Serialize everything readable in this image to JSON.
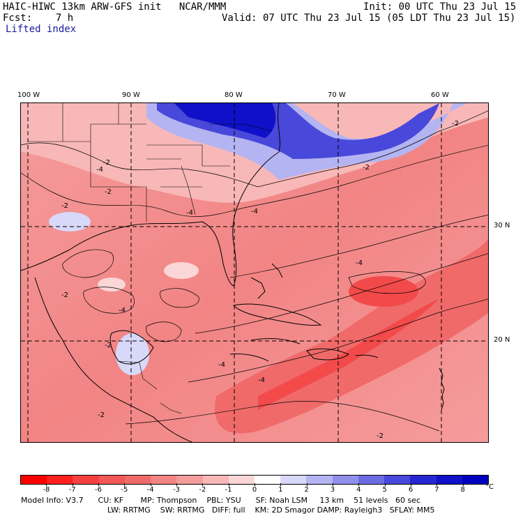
{
  "header": {
    "model": "HAIC-HIWC 13km ARW-GFS init   NCAR/MMM",
    "init": "Init: 00 UTC Thu 23 Jul 15",
    "fcst": "Fcst:    7 h",
    "valid": "Valid: 07 UTC Thu 23 Jul 15 (05 LDT Thu 23 Jul 15)",
    "field": "Lifted index"
  },
  "map": {
    "lon_labels": [
      "100 W",
      "90 W",
      "80 W",
      "70 W",
      "60 W"
    ],
    "lat_labels": [
      "30 N",
      "20 N"
    ],
    "contour_labels": [
      "-2",
      "-4",
      "-2",
      "-2",
      "-4",
      "-2",
      "-4",
      "-2",
      "-4",
      "-4",
      "-2",
      "-2",
      "-4",
      "-4",
      "-2",
      "-2"
    ]
  },
  "colorbar": {
    "ticks": [
      "-8",
      "-7",
      "-6",
      "-5",
      "-4",
      "-3",
      "-2",
      "-1",
      "0",
      "1",
      "2",
      "3",
      "4",
      "5",
      "6",
      "7",
      "8"
    ],
    "unit": "°C",
    "colors": [
      "#ff0000",
      "#ff2020",
      "#f64040",
      "#f25858",
      "#f06a6a",
      "#f28484",
      "#f59c9c",
      "#f8b8b8",
      "#fbd6d6",
      "#ffffff",
      "#d8d8f8",
      "#b4b4f2",
      "#9090ea",
      "#6c6ce2",
      "#4848da",
      "#2626d2",
      "#1010c8",
      "#0000c0"
    ]
  },
  "footer": {
    "line1": "Model Info: V3.7      CU: KF       MP: Thompson    PBL: YSU      SF: Noah LSM     13 km    51 levels   60 sec",
    "line2": "LW: RRTMG    SW: RRTMG   DIFF: full    KM: 2D Smagor DAMP: Rayleigh3   SFLAY: MM5"
  }
}
